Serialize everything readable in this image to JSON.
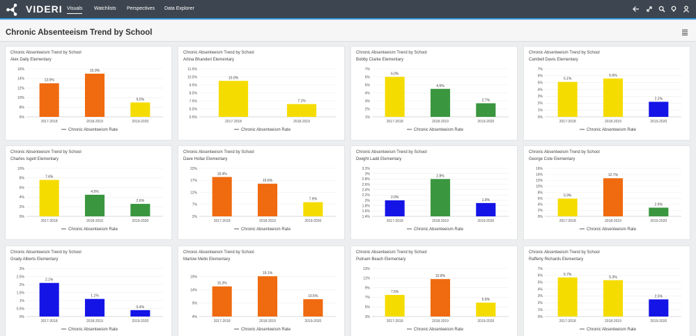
{
  "app": {
    "brand": "VIDERI",
    "nav": [
      {
        "label": "Visuals",
        "active": true
      },
      {
        "label": "Watchlists",
        "active": false
      },
      {
        "label": "Perspectives",
        "active": false
      },
      {
        "label": "Data Explorer",
        "active": false
      }
    ],
    "toolbar_icons": [
      "back-arrow-icon",
      "expand-icon",
      "search-icon",
      "lightbulb-icon",
      "user-icon"
    ]
  },
  "page": {
    "title": "Chronic Absenteeism Trend by School",
    "menu_icon": "hamburger-menu-icon"
  },
  "colors": {
    "orange": "#f06a0f",
    "yellow": "#f5dc00",
    "green": "#3a963f",
    "blue": "#1414e6",
    "topbar": "#3d4650",
    "accent": "#2a8fd6"
  },
  "chart_data": [
    {
      "type": "bar",
      "title": "Chronic Absenteeism Trend by School",
      "school": "Alex Daily Elementary",
      "categories": [
        "2017-2018",
        "2018-2019",
        "2019-2020"
      ],
      "values": [
        13.0,
        15.0,
        9.0
      ],
      "labels": [
        "13.0%",
        "15.0%",
        "9.0%"
      ],
      "colors": [
        "#f06a0f",
        "#f06a0f",
        "#f5dc00"
      ],
      "ylim": [
        6,
        16
      ],
      "ticks": [
        "6%",
        "8%",
        "10%",
        "12%",
        "14%",
        "16%"
      ],
      "tick_values": [
        6,
        8,
        10,
        12,
        14,
        16
      ],
      "legend": "Chronic Absenteeism Rate"
    },
    {
      "type": "bar",
      "title": "Chronic Absenteeism Trend by School",
      "school": "Arlina Bhanderi Elementary",
      "categories": [
        "2017-2018",
        "2018-2019"
      ],
      "values": [
        10.0,
        7.1
      ],
      "labels": [
        "10.0%",
        "7.1%"
      ],
      "colors": [
        "#f5dc00",
        "#f5dc00"
      ],
      "ylim": [
        5.5,
        11.5
      ],
      "ticks": [
        "5.5%",
        "6.5%",
        "7.5%",
        "8.5%",
        "9.5%",
        "10.5%",
        "11.5%"
      ],
      "tick_values": [
        5.5,
        6.5,
        7.5,
        8.5,
        9.5,
        10.5,
        11.5
      ],
      "legend": "Chronic Absenteeism Rate"
    },
    {
      "type": "bar",
      "title": "Chronic Absenteeism Trend by School",
      "school": "Bobby Clarke Elementary",
      "categories": [
        "2017-2018",
        "2018-2019",
        "2019-2020"
      ],
      "values": [
        6.0,
        4.5,
        2.7
      ],
      "labels": [
        "6.0%",
        "4.5%",
        "2.7%"
      ],
      "colors": [
        "#f5dc00",
        "#3a963f",
        "#3a963f"
      ],
      "ylim": [
        1,
        7
      ],
      "ticks": [
        "1%",
        "2%",
        "3%",
        "4%",
        "5%",
        "6%",
        "7%"
      ],
      "tick_values": [
        1,
        2,
        3,
        4,
        5,
        6,
        7
      ],
      "legend": "Chronic Absenteeism Rate"
    },
    {
      "type": "bar",
      "title": "Chronic Absenteeism Trend by School",
      "school": "Cambell Davis Elementary",
      "categories": [
        "2017-2018",
        "2018-2019",
        "2019-2020"
      ],
      "values": [
        5.1,
        5.6,
        2.2
      ],
      "labels": [
        "5.1%",
        "5.6%",
        "2.2%"
      ],
      "colors": [
        "#f5dc00",
        "#f5dc00",
        "#1414e6"
      ],
      "ylim": [
        0,
        7
      ],
      "ticks": [
        "0%",
        "1%",
        "2%",
        "3%",
        "4%",
        "5%",
        "6%",
        "7%"
      ],
      "tick_values": [
        0,
        1,
        2,
        3,
        4,
        5,
        6,
        7
      ],
      "legend": "Chronic Absenteeism Rate"
    },
    {
      "type": "bar",
      "title": "Chronic Absenteeism Trend by School",
      "school": "Charles Isgett Elementary",
      "categories": [
        "2017-2018",
        "2018-2019",
        "2019-2020"
      ],
      "values": [
        7.6,
        4.5,
        2.6
      ],
      "labels": [
        "7.6%",
        "4.5%",
        "2.6%"
      ],
      "colors": [
        "#f5dc00",
        "#3a963f",
        "#3a963f"
      ],
      "ylim": [
        0,
        10
      ],
      "ticks": [
        "0%",
        "2%",
        "4%",
        "6%",
        "8%",
        "10%"
      ],
      "tick_values": [
        0,
        2,
        4,
        6,
        8,
        10
      ],
      "legend": "Chronic Absenteeism Rate"
    },
    {
      "type": "bar",
      "title": "Chronic Absenteeism Trend by School",
      "school": "Dave Hollar Elementary",
      "categories": [
        "2017-2018",
        "2018-2019",
        "2019-2020"
      ],
      "values": [
        18.4,
        15.6,
        7.9
      ],
      "labels": [
        "18.4%",
        "15.6%",
        "7.9%"
      ],
      "colors": [
        "#f06a0f",
        "#f06a0f",
        "#f5dc00"
      ],
      "ylim": [
        2,
        22
      ],
      "ticks": [
        "2%",
        "7%",
        "12%",
        "17%",
        "22%"
      ],
      "tick_values": [
        2,
        7,
        12,
        17,
        22
      ],
      "legend": "Chronic Absenteeism Rate"
    },
    {
      "type": "bar",
      "title": "Chronic Absenteeism Trend by School",
      "school": "Dwight Ladd Elementary",
      "categories": [
        "2017-2018",
        "2018-2019",
        "2019-2020"
      ],
      "values": [
        2.0,
        2.8,
        1.9
      ],
      "labels": [
        "2.0%",
        "2.8%",
        "1.9%"
      ],
      "colors": [
        "#1414e6",
        "#3a963f",
        "#1414e6"
      ],
      "ylim": [
        1.4,
        3.2
      ],
      "ticks": [
        "1.4%",
        "1.6%",
        "1.8%",
        "2%",
        "2.2%",
        "2.4%",
        "2.6%",
        "2.8%",
        "3%",
        "3.2%"
      ],
      "tick_values": [
        1.4,
        1.6,
        1.8,
        2.0,
        2.2,
        2.4,
        2.6,
        2.8,
        3.0,
        3.2
      ],
      "legend": "Chronic Absenteeism Rate"
    },
    {
      "type": "bar",
      "title": "Chronic Absenteeism Trend by School",
      "school": "George Cote Elementary",
      "categories": [
        "2017-2018",
        "2018-2019",
        "2019-2020"
      ],
      "values": [
        5.9,
        12.7,
        2.9
      ],
      "labels": [
        "5.9%",
        "12.7%",
        "2.9%"
      ],
      "colors": [
        "#f5dc00",
        "#f06a0f",
        "#3a963f"
      ],
      "ylim": [
        0,
        16
      ],
      "ticks": [
        "0%",
        "2%",
        "4%",
        "6%",
        "8%",
        "10%",
        "12%",
        "14%",
        "16%"
      ],
      "tick_values": [
        0,
        2,
        4,
        6,
        8,
        10,
        12,
        14,
        16
      ],
      "legend": "Chronic Absenteeism Rate"
    },
    {
      "type": "bar",
      "title": "Chronic Absenteeism Trend by School",
      "school": "Grady Alberts Elementary",
      "categories": [
        "2017-2018",
        "2018-2019",
        "2019-2020"
      ],
      "values": [
        2.1,
        1.1,
        0.4
      ],
      "labels": [
        "2.1%",
        "1.1%",
        "0.4%"
      ],
      "colors": [
        "#1414e6",
        "#1414e6",
        "#1414e6"
      ],
      "ylim": [
        0,
        3
      ],
      "ticks": [
        "0%",
        "0.5%",
        "1%",
        "1.5%",
        "2%",
        "2.5%",
        "3%"
      ],
      "tick_values": [
        0,
        0.5,
        1,
        1.5,
        2,
        2.5,
        3
      ],
      "legend": "Chronic Absenteeism Rate"
    },
    {
      "type": "bar",
      "title": "Chronic Absenteeism Trend by School",
      "school": "Marlow Mello Elementary",
      "categories": [
        "2017-2018",
        "2018-2019",
        "2019-2020"
      ],
      "values": [
        15.3,
        19.1,
        10.5
      ],
      "labels": [
        "15.3%",
        "19.1%",
        "10.5%"
      ],
      "colors": [
        "#f06a0f",
        "#f06a0f",
        "#f06a0f"
      ],
      "ylim": [
        4,
        22
      ],
      "ticks": [
        "4%",
        "9%",
        "14%",
        "19%"
      ],
      "tick_values": [
        4,
        9,
        14,
        19
      ],
      "legend": "Chronic Absenteeism Rate"
    },
    {
      "type": "bar",
      "title": "Chronic Absenteeism Trend by School",
      "school": "Putnam Beach Elementary",
      "categories": [
        "2017-2018",
        "2018-2019",
        "2019-2020"
      ],
      "values": [
        7.5,
        10.8,
        5.9
      ],
      "labels": [
        "7.5%",
        "10.8%",
        "5.9%"
      ],
      "colors": [
        "#f5dc00",
        "#f06a0f",
        "#f5dc00"
      ],
      "ylim": [
        3,
        13
      ],
      "ticks": [
        "3%",
        "5%",
        "7%",
        "9%",
        "11%",
        "13%"
      ],
      "tick_values": [
        3,
        5,
        7,
        9,
        11,
        13
      ],
      "legend": "Chronic Absenteeism Rate"
    },
    {
      "type": "bar",
      "title": "Chronic Absenteeism Trend by School",
      "school": "Rafferty Richards Elementary",
      "categories": [
        "2017-2018",
        "2018-2019",
        "2019-2020"
      ],
      "values": [
        5.7,
        5.3,
        2.5
      ],
      "labels": [
        "5.7%",
        "5.3%",
        "2.5%"
      ],
      "colors": [
        "#f5dc00",
        "#f5dc00",
        "#1414e6"
      ],
      "ylim": [
        0,
        7
      ],
      "ticks": [
        "0%",
        "1%",
        "2%",
        "3%",
        "4%",
        "5%",
        "6%",
        "7%"
      ],
      "tick_values": [
        0,
        1,
        2,
        3,
        4,
        5,
        6,
        7
      ],
      "legend": "Chronic Absenteeism Rate"
    }
  ]
}
